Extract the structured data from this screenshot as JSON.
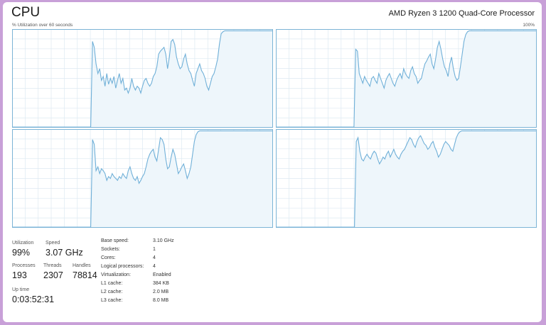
{
  "header": {
    "title": "CPU",
    "cpu_model": "AMD Ryzen 3 1200 Quad-Core Processor",
    "util_label": "% Utilization over 60 seconds",
    "max_label": "100%"
  },
  "colors": {
    "graph_line": "#70b0d8",
    "graph_fill": "#eef6fb",
    "graph_border": "#7cb4d6",
    "grid": "#dde9f2"
  },
  "cores_utilization": [
    [
      0,
      0,
      0,
      0,
      0,
      0,
      0,
      0,
      0,
      0,
      0,
      0,
      0,
      0,
      0,
      0,
      0,
      0,
      0,
      0,
      0,
      0,
      0,
      0,
      0,
      0,
      0,
      0,
      0,
      0,
      0,
      0,
      0,
      0,
      0,
      0,
      0,
      0,
      0,
      0,
      0,
      0,
      0,
      0,
      0,
      88,
      82,
      65,
      55,
      60,
      48,
      52,
      42,
      55,
      44,
      50,
      45,
      52,
      40,
      48,
      55,
      45,
      50,
      38,
      40,
      35,
      40,
      50,
      42,
      38,
      42,
      40,
      35,
      42,
      48,
      50,
      45,
      42,
      45,
      52,
      55,
      62,
      75,
      78,
      80,
      82,
      75,
      60,
      72,
      88,
      90,
      85,
      72,
      65,
      60,
      62,
      70,
      75,
      65,
      58,
      55,
      48,
      42,
      55,
      60,
      65,
      58,
      55,
      50,
      42,
      38,
      45,
      52,
      55,
      62,
      70,
      85,
      96,
      98,
      99,
      99,
      99,
      99,
      99,
      99,
      99,
      99,
      99,
      99,
      99,
      99,
      99,
      99,
      99,
      99,
      99,
      99,
      99,
      99,
      99,
      99,
      99,
      99,
      99,
      99,
      99,
      99
    ],
    [
      0,
      0,
      0,
      0,
      0,
      0,
      0,
      0,
      0,
      0,
      0,
      0,
      0,
      0,
      0,
      0,
      0,
      0,
      0,
      0,
      0,
      0,
      0,
      0,
      0,
      0,
      0,
      0,
      0,
      0,
      0,
      0,
      0,
      0,
      0,
      0,
      0,
      0,
      0,
      0,
      0,
      0,
      0,
      0,
      0,
      80,
      78,
      55,
      50,
      45,
      52,
      48,
      45,
      42,
      50,
      52,
      48,
      45,
      55,
      50,
      45,
      40,
      48,
      52,
      55,
      50,
      45,
      42,
      48,
      52,
      55,
      50,
      60,
      55,
      52,
      50,
      58,
      62,
      55,
      52,
      45,
      48,
      50,
      58,
      65,
      68,
      72,
      75,
      65,
      60,
      70,
      82,
      88,
      80,
      70,
      62,
      58,
      52,
      65,
      72,
      60,
      52,
      48,
      50,
      62,
      75,
      88,
      95,
      98,
      99,
      99,
      99,
      99,
      99,
      99,
      99,
      99,
      99,
      99,
      99,
      99,
      99,
      99,
      99,
      99,
      99,
      99,
      99,
      99,
      99,
      99,
      99,
      99,
      99,
      99,
      99,
      99,
      99,
      99,
      99,
      99,
      99,
      99,
      99,
      99,
      99,
      99,
      99
    ],
    [
      0,
      0,
      0,
      0,
      0,
      0,
      0,
      0,
      0,
      0,
      0,
      0,
      0,
      0,
      0,
      0,
      0,
      0,
      0,
      0,
      0,
      0,
      0,
      0,
      0,
      0,
      0,
      0,
      0,
      0,
      0,
      0,
      0,
      0,
      0,
      0,
      0,
      0,
      0,
      0,
      0,
      0,
      0,
      0,
      0,
      90,
      85,
      58,
      62,
      55,
      60,
      58,
      55,
      48,
      52,
      50,
      55,
      52,
      50,
      48,
      52,
      50,
      55,
      52,
      50,
      58,
      62,
      55,
      50,
      48,
      52,
      45,
      48,
      52,
      55,
      62,
      70,
      75,
      78,
      80,
      72,
      68,
      80,
      92,
      90,
      85,
      70,
      60,
      62,
      72,
      80,
      75,
      65,
      55,
      58,
      62,
      65,
      58,
      50,
      55,
      62,
      75,
      88,
      95,
      98,
      99,
      99,
      99,
      99,
      99,
      99,
      99,
      99,
      99,
      99,
      99,
      99,
      99,
      99,
      99,
      99,
      99,
      99,
      99,
      99,
      99,
      99,
      99,
      99,
      99,
      99,
      99,
      99,
      99,
      99,
      99,
      99,
      99,
      99,
      99,
      99,
      99,
      99,
      99,
      99,
      99,
      99
    ],
    [
      0,
      0,
      0,
      0,
      0,
      0,
      0,
      0,
      0,
      0,
      0,
      0,
      0,
      0,
      0,
      0,
      0,
      0,
      0,
      0,
      0,
      0,
      0,
      0,
      0,
      0,
      0,
      0,
      0,
      0,
      0,
      0,
      0,
      0,
      0,
      0,
      0,
      0,
      0,
      0,
      0,
      0,
      0,
      0,
      0,
      88,
      92,
      78,
      70,
      68,
      72,
      75,
      72,
      70,
      75,
      78,
      76,
      70,
      65,
      68,
      72,
      70,
      75,
      78,
      72,
      76,
      80,
      75,
      72,
      70,
      75,
      78,
      80,
      84,
      88,
      92,
      90,
      85,
      82,
      88,
      92,
      94,
      90,
      86,
      84,
      80,
      82,
      86,
      88,
      82,
      78,
      72,
      75,
      80,
      85,
      88,
      86,
      84,
      80,
      78,
      85,
      92,
      96,
      98,
      99,
      99,
      99,
      99,
      99,
      99,
      99,
      99,
      99,
      99,
      99,
      99,
      99,
      99,
      99,
      99,
      99,
      99,
      99,
      99,
      99,
      99,
      99,
      99,
      99,
      99,
      99,
      99,
      99,
      99,
      99,
      99,
      99,
      99,
      99,
      99,
      99,
      99,
      99,
      99,
      99,
      99,
      99
    ]
  ],
  "stats": {
    "utilization_label": "Utilization",
    "utilization_value": "99%",
    "speed_label": "Speed",
    "speed_value": "3.07 GHz",
    "processes_label": "Processes",
    "processes_value": "193",
    "threads_label": "Threads",
    "threads_value": "2307",
    "handles_label": "Handles",
    "handles_value": "78814",
    "uptime_label": "Up time",
    "uptime_value": "0:03:52:31"
  },
  "specs": [
    {
      "key": "Base speed:",
      "value": "3.10 GHz"
    },
    {
      "key": "Sockets:",
      "value": "1"
    },
    {
      "key": "Cores:",
      "value": "4"
    },
    {
      "key": "Logical processors:",
      "value": "4"
    },
    {
      "key": "Virtualization:",
      "value": "Enabled"
    },
    {
      "key": "L1 cache:",
      "value": "384 KB"
    },
    {
      "key": "L2 cache:",
      "value": "2.0 MB"
    },
    {
      "key": "L3 cache:",
      "value": "8.0 MB"
    }
  ]
}
